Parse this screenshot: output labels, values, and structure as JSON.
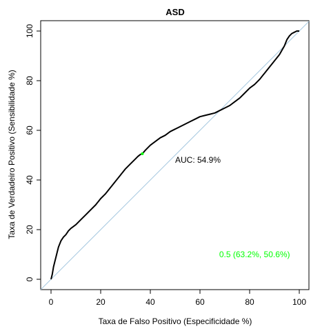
{
  "chart_data": {
    "type": "line",
    "title": "ASD",
    "xlabel": "Taxa de Falso Positivo (Especificidade %)",
    "ylabel": "Taxa de Verdadeiro Positivo (Sensibilidade %)",
    "xlim": [
      0,
      100
    ],
    "ylim": [
      0,
      100
    ],
    "x_ticks": [
      0,
      20,
      40,
      60,
      80,
      100
    ],
    "y_ticks": [
      0,
      20,
      40,
      60,
      80,
      100
    ],
    "x_tick_labels": [
      "0",
      "20",
      "40",
      "60",
      "80",
      "100"
    ],
    "y_tick_labels": [
      "0",
      "20",
      "40",
      "60",
      "80",
      "100"
    ],
    "grid": false,
    "auc_label": "AUC: 54.9%",
    "auc_label_position": [
      50,
      48
    ],
    "threshold_label": "0.5 (63.2%, 50.6%)",
    "threshold_label_position": [
      82,
      10
    ],
    "threshold_point": {
      "x": 36.8,
      "y": 50.6
    },
    "colors": {
      "roc_curve": "#000000",
      "diagonal": "#a6c8e0",
      "threshold": "#00ff00",
      "axis": "#000000"
    },
    "series": [
      {
        "x": [
          0,
          0.5,
          1,
          1.5,
          2,
          2.5,
          3,
          4,
          5,
          6,
          7,
          8,
          10,
          12,
          14,
          16,
          18,
          20,
          22,
          24,
          26,
          28,
          30,
          32,
          34,
          35,
          36,
          36.8,
          38,
          40,
          42,
          44,
          46,
          48,
          50,
          52,
          54,
          56,
          58,
          60,
          62,
          64,
          66,
          68,
          70,
          72,
          74,
          76,
          78,
          80,
          82,
          84,
          86,
          88,
          90,
          92,
          94,
          95,
          96,
          97,
          98,
          99,
          100
        ],
        "y": [
          0,
          2,
          5,
          7,
          9,
          11,
          13,
          15.5,
          17,
          18,
          19.5,
          20.5,
          22,
          24,
          26,
          28,
          30,
          32.5,
          34.5,
          37,
          39.5,
          42,
          44.5,
          46.5,
          48.5,
          49.5,
          50.3,
          50.6,
          52,
          54,
          55.5,
          57,
          58,
          59.5,
          60.5,
          61.5,
          62.5,
          63.5,
          64.5,
          65.5,
          66,
          66.5,
          67,
          68,
          69,
          70,
          71.5,
          73,
          75,
          77,
          78.5,
          80.5,
          83,
          85.5,
          88,
          90.5,
          94,
          96.5,
          98,
          99,
          99.5,
          100,
          100
        ]
      }
    ]
  }
}
